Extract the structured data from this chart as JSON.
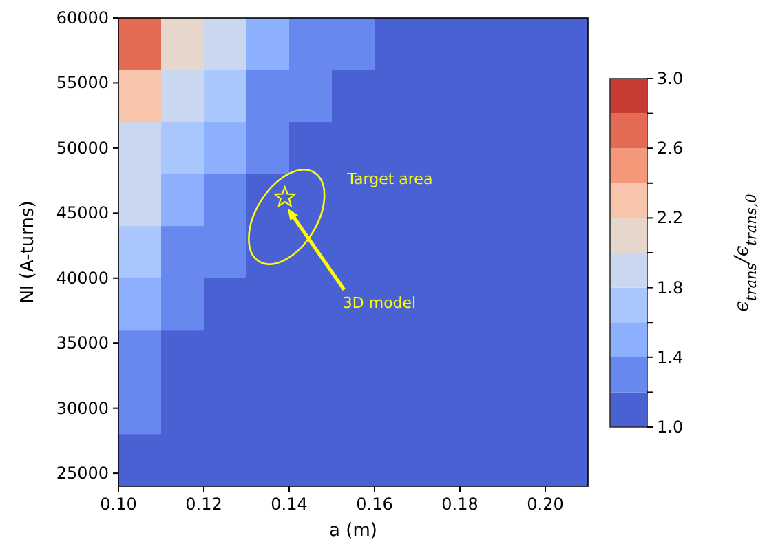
{
  "chart_data": {
    "type": "heatmap",
    "xlabel": "a (m)",
    "ylabel": "NI (A-turns)",
    "clabel": "ϵ$_{trans}$/ϵ$_{trans,0}$",
    "x": [
      0.105,
      0.115,
      0.125,
      0.135,
      0.145,
      0.155,
      0.165,
      0.175,
      0.185,
      0.195,
      0.205
    ],
    "y": [
      58000,
      54000,
      50000,
      46000,
      42000,
      38000,
      34000,
      30000,
      26000
    ],
    "cells": [
      [
        2.7,
        2.1,
        1.84,
        1.55,
        1.35,
        1.23,
        1.1,
        1.05,
        1.02,
        1.02,
        1.02
      ],
      [
        2.27,
        1.9,
        1.65,
        1.38,
        1.25,
        1.13,
        1.05,
        1.02,
        1.02,
        1.02,
        1.02
      ],
      [
        1.99,
        1.75,
        1.45,
        1.28,
        1.15,
        1.07,
        1.02,
        1.02,
        1.02,
        1.02,
        1.02
      ],
      [
        1.84,
        1.55,
        1.33,
        1.18,
        1.08,
        1.03,
        1.02,
        1.02,
        1.02,
        1.02,
        1.02
      ],
      [
        1.65,
        1.38,
        1.23,
        1.09,
        1.03,
        1.02,
        1.02,
        1.02,
        1.02,
        1.02,
        1.02
      ],
      [
        1.45,
        1.28,
        1.13,
        1.04,
        1.02,
        1.02,
        1.02,
        1.02,
        1.02,
        1.02,
        1.02
      ],
      [
        1.33,
        1.18,
        1.07,
        1.02,
        1.02,
        1.02,
        1.02,
        1.02,
        1.02,
        1.02,
        1.02
      ],
      [
        1.23,
        1.09,
        1.03,
        1.02,
        1.02,
        1.02,
        1.02,
        1.02,
        1.02,
        1.02,
        1.02
      ],
      [
        1.13,
        1.04,
        1.02,
        1.02,
        1.02,
        1.02,
        1.02,
        1.02,
        1.02,
        1.02,
        1.02
      ]
    ],
    "colors": [
      "#4961d2",
      "#6788ee",
      "#8caffe",
      "#aac7fd",
      "#c9d7f0",
      "#e7d6cc",
      "#f7c4ac",
      "#f4987a",
      "#e36a53",
      "#c83b35"
    ],
    "clim": [
      1.0,
      3.0
    ],
    "cticks": [
      {
        "value": 1.0,
        "label": "1.0"
      },
      {
        "value": 1.2,
        "label": null
      },
      1.4,
      {
        "value": 1.6,
        "label": null
      },
      1.8,
      {
        "value": 2.0,
        "label": null
      },
      2.2,
      {
        "value": 2.4,
        "label": null
      },
      2.6,
      {
        "value": 2.8,
        "label": null
      },
      {
        "value": 3.0,
        "label": "3.0"
      }
    ],
    "xlim": [
      0.1,
      0.21
    ],
    "xticks": [
      {
        "value": 0.1,
        "label": "0.10"
      },
      0.12,
      0.14,
      0.16,
      0.18,
      {
        "value": 0.2,
        "label": "0.20"
      }
    ],
    "ylim": [
      24000,
      60000
    ],
    "yticks": [
      25000,
      30000,
      35000,
      40000,
      45000,
      50000,
      55000,
      60000
    ],
    "annotations": [
      "Target area",
      "3D model"
    ]
  }
}
